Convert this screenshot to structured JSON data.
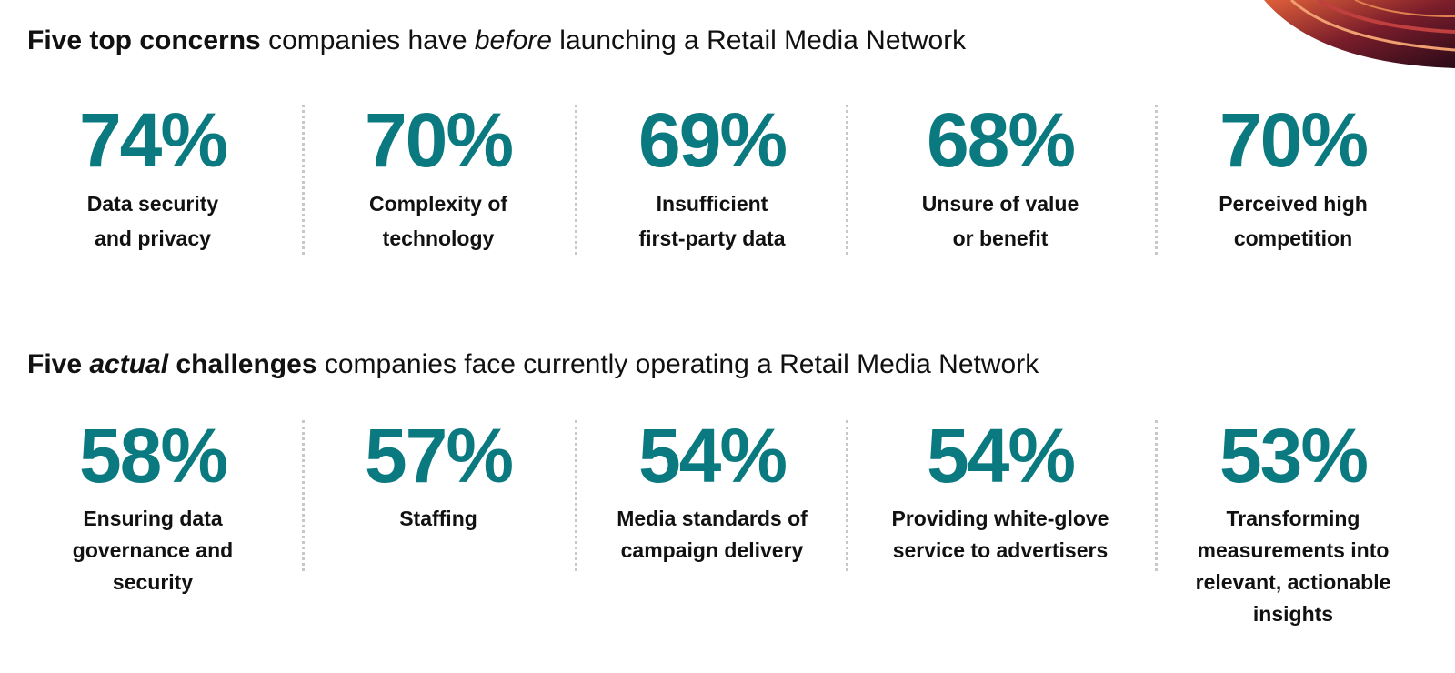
{
  "sections": [
    {
      "title": [
        {
          "text": "Five top concerns",
          "style": "bold"
        },
        {
          "text": " companies have ",
          "style": "normal"
        },
        {
          "text": "before",
          "style": "italic"
        },
        {
          "text": " launching a Retail Media Network",
          "style": "normal"
        }
      ],
      "items": [
        {
          "value": "74%",
          "label_lines": [
            "Data security",
            "and privacy"
          ]
        },
        {
          "value": "70%",
          "label_lines": [
            "Complexity of",
            "technology"
          ]
        },
        {
          "value": "69%",
          "label_lines": [
            "Insufficient",
            "first-party data"
          ]
        },
        {
          "value": "68%",
          "label_lines": [
            "Unsure of value",
            "or benefit"
          ]
        },
        {
          "value": "70%",
          "label_lines": [
            "Perceived high",
            "competition"
          ]
        }
      ]
    },
    {
      "title": [
        {
          "text": "Five ",
          "style": "bold"
        },
        {
          "text": "actual",
          "style": "bold-italic"
        },
        {
          "text": " challenges",
          "style": "bold"
        },
        {
          "text": " companies face currently operating a Retail Media Network",
          "style": "normal"
        }
      ],
      "items": [
        {
          "value": "58%",
          "label_lines": [
            "Ensuring data",
            "governance and",
            "security"
          ]
        },
        {
          "value": "57%",
          "label_lines": [
            "Staffing"
          ]
        },
        {
          "value": "54%",
          "label_lines": [
            "Media standards of",
            "campaign delivery"
          ]
        },
        {
          "value": "54%",
          "label_lines": [
            "Providing white-glove",
            "service to advertisers"
          ]
        },
        {
          "value": "53%",
          "label_lines": [
            "Transforming",
            "measurements into",
            "relevant, actionable",
            "insights"
          ]
        }
      ]
    }
  ]
}
